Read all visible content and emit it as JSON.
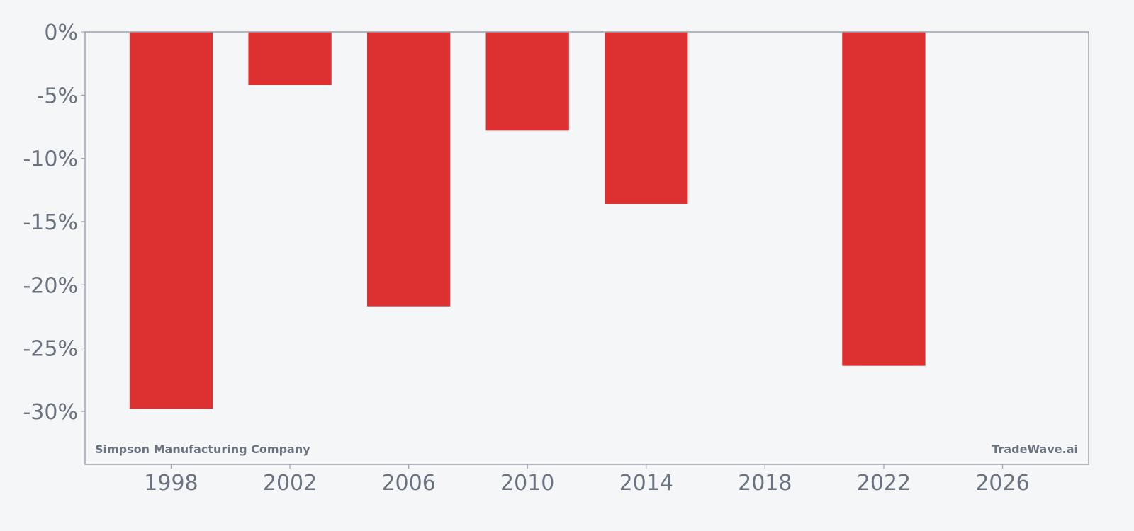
{
  "chart_data": {
    "type": "bar",
    "title": "",
    "xlabel": "",
    "ylabel": "",
    "x": [
      1998,
      2002,
      2006,
      2010,
      2014,
      2022
    ],
    "values": [
      -29.8,
      -4.2,
      -21.7,
      -7.8,
      -13.6,
      -26.4
    ],
    "xlim": [
      1995.1,
      2028.9
    ],
    "ylim": [
      -34.2,
      0
    ],
    "x_ticks": [
      1998,
      2002,
      2006,
      2010,
      2014,
      2018,
      2022,
      2026
    ],
    "x_tick_labels": [
      "1998",
      "2002",
      "2006",
      "2010",
      "2014",
      "2018",
      "2022",
      "2026"
    ],
    "y_ticks": [
      0,
      -5,
      -10,
      -15,
      -20,
      -25,
      -30
    ],
    "y_tick_labels": [
      "0%",
      "-5%",
      "-10%",
      "-15%",
      "-20%",
      "-25%",
      "-30%"
    ],
    "bar_width_years": 2.8,
    "grid": false,
    "legend": "none",
    "colors": {
      "bar": "#dc3031",
      "axis": "#9ca3af",
      "text": "#6b7280",
      "background": "#f4f6f8"
    }
  },
  "watermark_left": "Simpson Manufacturing Company",
  "watermark_right": "TradeWave.ai"
}
